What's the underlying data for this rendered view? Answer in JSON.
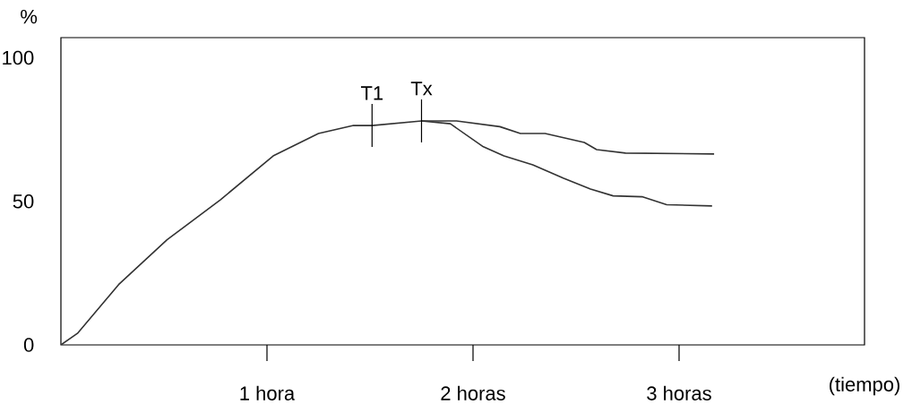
{
  "chart_data": {
    "type": "line",
    "xlabel": "(tiempo)",
    "ylabel": "%",
    "xlim": [
      0,
      3.9
    ],
    "ylim": [
      0,
      107
    ],
    "xticks": [
      {
        "value": 1,
        "label": "1 hora"
      },
      {
        "value": 2,
        "label": "2 horas"
      },
      {
        "value": 3,
        "label": "3 horas"
      }
    ],
    "yticks": [
      0,
      50,
      100
    ],
    "grid": false,
    "marker": "none",
    "line_style": "solid",
    "annotations": [
      {
        "text": "T1",
        "x": 1.51,
        "y": 76.4
      },
      {
        "text": "Tx",
        "x": 1.75,
        "y": 78
      }
    ],
    "series": [
      {
        "color": "#333333",
        "x": [
          0,
          0.08,
          0.28,
          0.515,
          0.775,
          1.03,
          1.25,
          1.42,
          1.51,
          1.75,
          1.92,
          2.13,
          2.23,
          2.35,
          2.54,
          2.6,
          2.74,
          3.17
        ],
        "values": [
          0,
          4,
          21,
          36.6,
          50.6,
          65.8,
          73.6,
          76.4,
          76.4,
          78,
          78,
          76,
          73.6,
          73.6,
          70.5,
          68,
          66.8,
          66.5
        ]
      },
      {
        "color": "#333333",
        "x": [
          1.75,
          1.89,
          2.05,
          2.15,
          2.29,
          2.44,
          2.57,
          2.68,
          2.82,
          2.94,
          3.16
        ],
        "values": [
          78,
          77,
          69,
          65.8,
          62.7,
          58,
          54.3,
          51.9,
          51.6,
          48.8,
          48.4
        ]
      }
    ]
  }
}
